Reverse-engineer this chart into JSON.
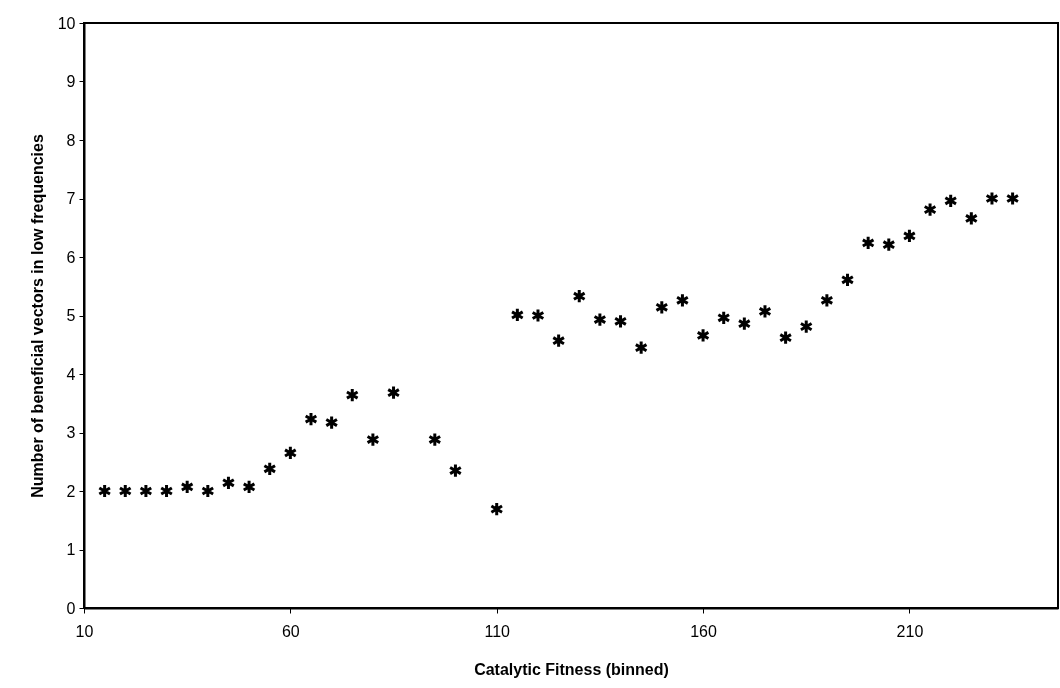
{
  "chart_data": {
    "type": "scatter",
    "xlabel": "Catalytic Fitness (binned)",
    "ylabel": "Number of beneficial vectors in low frequencies",
    "x": [
      15,
      20,
      25,
      30,
      35,
      40,
      45,
      50,
      55,
      60,
      65,
      70,
      75,
      80,
      85,
      95,
      100,
      110,
      115,
      120,
      125,
      130,
      135,
      140,
      145,
      150,
      155,
      160,
      165,
      170,
      175,
      180,
      185,
      190,
      195,
      200,
      205,
      210,
      215,
      220,
      225,
      230,
      235
    ],
    "series": [
      {
        "color": "#000000",
        "values": [
          2.0,
          2.0,
          2.0,
          2.0,
          2.07,
          2.0,
          2.14,
          2.07,
          2.38,
          2.65,
          3.23,
          3.17,
          3.64,
          2.88,
          3.68,
          2.88,
          2.35,
          1.69,
          5.01,
          5.0,
          4.57,
          5.33,
          4.93,
          4.9,
          4.45,
          5.14,
          5.26,
          4.66,
          4.96,
          4.86,
          5.07,
          4.62,
          4.81,
          5.26,
          5.61,
          6.24,
          6.21,
          6.36,
          6.81,
          6.96,
          6.66,
          7.0,
          7.0
        ]
      }
    ],
    "xlim": [
      10,
      246
    ],
    "xticks": [
      10,
      60,
      110,
      160,
      210
    ],
    "ylim": [
      0,
      10
    ],
    "yticks": [
      0,
      1,
      2,
      3,
      4,
      5,
      6,
      7,
      8,
      9,
      10
    ],
    "grid": false,
    "marker": "cross"
  }
}
